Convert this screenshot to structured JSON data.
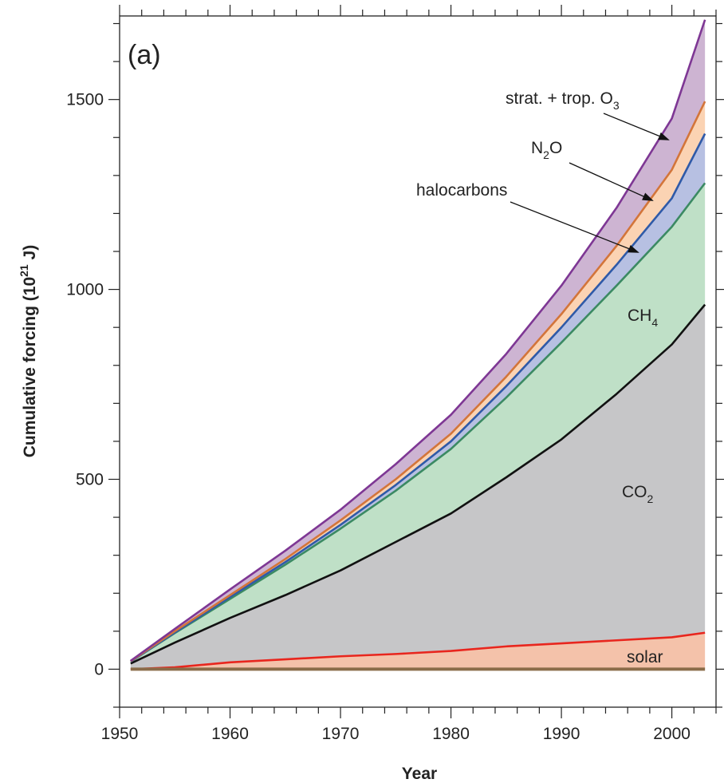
{
  "chart_data": {
    "type": "area",
    "panel_label": "(a)",
    "xlabel": "Year",
    "ylabel_main": "Cumulative forcing (10",
    "ylabel_sup": "21",
    "ylabel_end": " J)",
    "xlim": [
      1950,
      2004
    ],
    "ylim": [
      -100,
      1720
    ],
    "x_ticks": [
      1950,
      1960,
      1970,
      1980,
      1990,
      2000
    ],
    "y_ticks": [
      0,
      500,
      1000,
      1500
    ],
    "grid": false,
    "years": [
      1951,
      1955,
      1960,
      1965,
      1970,
      1975,
      1980,
      1985,
      1990,
      1995,
      2000,
      2003
    ],
    "series": [
      {
        "name": "solar",
        "color": "#f4c2aa",
        "line": "#e8261e",
        "values": [
          0,
          5,
          18,
          26,
          34,
          40,
          48,
          60,
          68,
          76,
          84,
          96
        ]
      },
      {
        "name": "CO2",
        "color": "#c6c6c8",
        "line": "#111111",
        "values": [
          15,
          70,
          135,
          195,
          260,
          335,
          410,
          505,
          605,
          725,
          855,
          960
        ]
      },
      {
        "name": "CH4",
        "color": "#bfe0c7",
        "line": "#3b8a63",
        "values": [
          20,
          95,
          185,
          275,
          370,
          470,
          580,
          715,
          860,
          1010,
          1165,
          1280
        ]
      },
      {
        "name": "halocarbons",
        "color": "#b7c0e2",
        "line": "#2f5aa8",
        "values": [
          20,
          97,
          190,
          282,
          380,
          485,
          600,
          745,
          900,
          1065,
          1240,
          1410
        ]
      },
      {
        "name": "N2O",
        "color": "#fbd3b3",
        "line": "#d3753a",
        "values": [
          21,
          100,
          195,
          290,
          392,
          500,
          620,
          770,
          935,
          1115,
          1315,
          1495
        ]
      },
      {
        "name": "strat. + trop. O3",
        "color": "#cdb4d2",
        "line": "#7e3794",
        "values": [
          22,
          106,
          210,
          312,
          420,
          540,
          670,
          830,
          1010,
          1215,
          1450,
          1710
        ]
      }
    ],
    "zero_line_color": "#8a6c49",
    "annotations": {
      "o3": {
        "main": "strat. + trop. O",
        "sub": "3"
      },
      "n2o": {
        "pre": "N",
        "sub": "2",
        "post": "O"
      },
      "halocarbons": "halocarbons",
      "ch4": {
        "pre": "CH",
        "sub": "4"
      },
      "co2": {
        "pre": "CO",
        "sub": "2"
      },
      "solar": "solar"
    }
  }
}
